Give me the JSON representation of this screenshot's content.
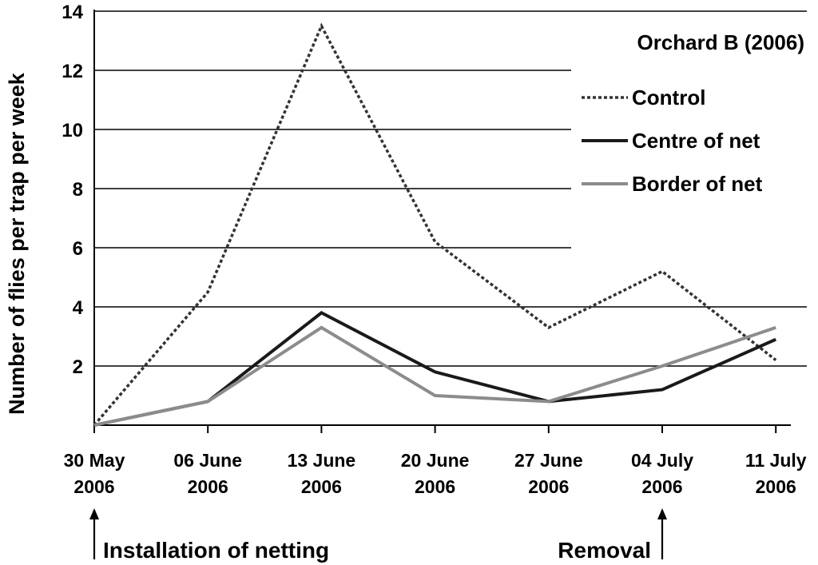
{
  "chart_data": {
    "type": "line",
    "title": "Orchard B (2006)",
    "ylabel": "Number of flies per trap per week",
    "xlabel": "",
    "ylim": [
      0,
      14
    ],
    "yticks": [
      2,
      4,
      6,
      8,
      10,
      12,
      14
    ],
    "grid": true,
    "legend_position": "top-right",
    "categories": [
      [
        "30 May",
        "2006"
      ],
      [
        "06 June",
        "2006"
      ],
      [
        "13 June",
        "2006"
      ],
      [
        "20 June",
        "2006"
      ],
      [
        "27 June",
        "2006"
      ],
      [
        "04 July",
        "2006"
      ],
      [
        "11 July",
        "2006"
      ]
    ],
    "series": [
      {
        "name": "Control",
        "values": [
          0,
          4.5,
          13.5,
          6.2,
          3.3,
          5.2,
          2.2
        ],
        "color": "#333333",
        "style": "dotted"
      },
      {
        "name": "Centre of net",
        "values": [
          0,
          0.8,
          3.8,
          1.8,
          0.8,
          1.2,
          2.9
        ],
        "color": "#1a1a1a",
        "style": "solid"
      },
      {
        "name": "Border of net",
        "values": [
          0,
          0.8,
          3.3,
          1.0,
          0.8,
          2.0,
          3.3
        ],
        "color": "#8c8c8c",
        "style": "solid"
      }
    ],
    "annotations": [
      {
        "text": "Installation of netting",
        "category_index": 0
      },
      {
        "text": "Removal",
        "category_index": 5
      }
    ]
  }
}
